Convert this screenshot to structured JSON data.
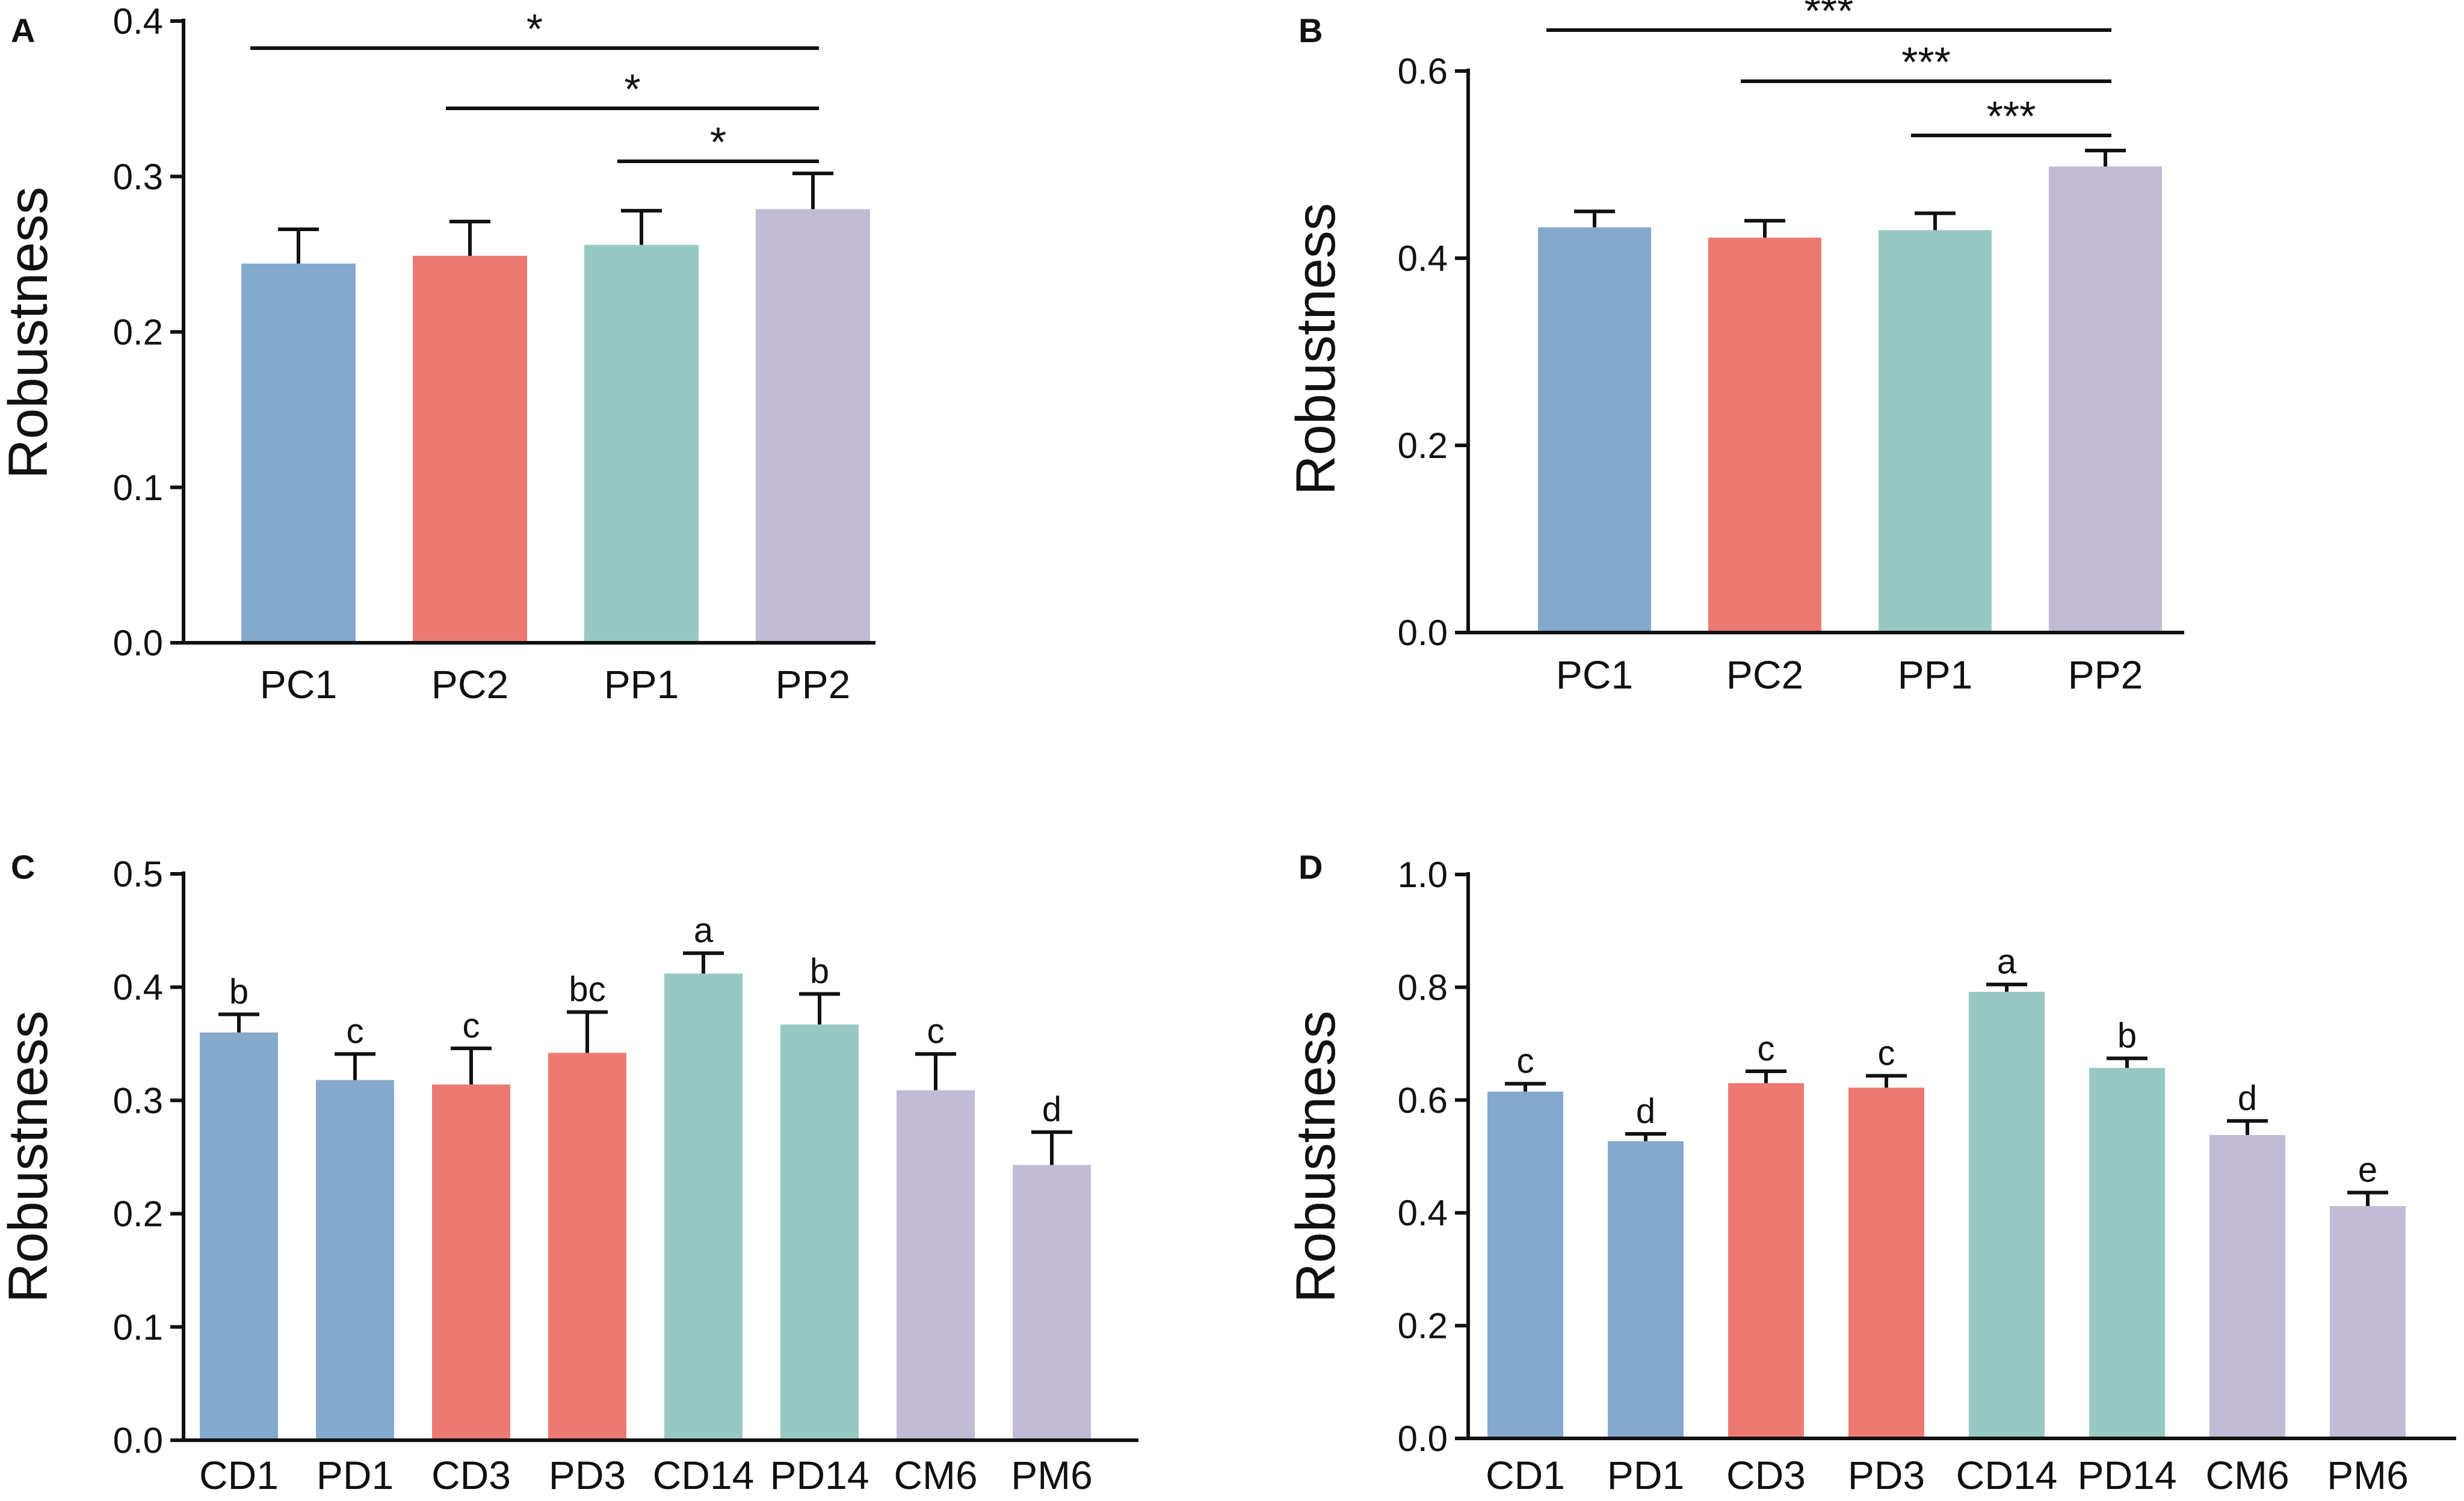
{
  "colors": {
    "blue": "#84a9cd",
    "red": "#ec7a72",
    "teal": "#97c9c2",
    "purple": "#c2bbd6",
    "axis": "#111111"
  },
  "chart_data": [
    {
      "panel": "A",
      "type": "bar",
      "ylabel": "Robustness",
      "ylim": [
        0,
        0.4
      ],
      "yticks": [
        "0.0",
        "0.1",
        "0.2",
        "0.3",
        "0.4"
      ],
      "categories": [
        "PC1",
        "PC2",
        "PP1",
        "PP2"
      ],
      "values": [
        0.244,
        0.249,
        0.256,
        0.279
      ],
      "errors": [
        0.022,
        0.022,
        0.022,
        0.023
      ],
      "colors": [
        "blue",
        "red",
        "teal",
        "purple"
      ],
      "significance": [
        {
          "from": 0,
          "to": 3,
          "label": "*"
        },
        {
          "from": 1,
          "to": 3,
          "label": "*"
        },
        {
          "from": 2,
          "to": 3,
          "label": "*"
        }
      ],
      "letters": []
    },
    {
      "panel": "B",
      "type": "bar",
      "ylabel": "Robustness",
      "ylim": [
        0,
        0.6
      ],
      "yticks": [
        "0.0",
        "0.2",
        "0.4",
        "0.6"
      ],
      "categories": [
        "PC1",
        "PC2",
        "PP1",
        "PP2"
      ],
      "values": [
        0.433,
        0.422,
        0.43,
        0.498
      ],
      "errors": [
        0.017,
        0.018,
        0.018,
        0.017
      ],
      "colors": [
        "blue",
        "red",
        "teal",
        "purple"
      ],
      "significance": [
        {
          "from": 0,
          "to": 3,
          "label": "***"
        },
        {
          "from": 1,
          "to": 3,
          "label": "***"
        },
        {
          "from": 2,
          "to": 3,
          "label": "***"
        }
      ],
      "letters": []
    },
    {
      "panel": "C",
      "type": "bar",
      "ylabel": "Robustness",
      "ylim": [
        0,
        0.5
      ],
      "yticks": [
        "0.0",
        "0.1",
        "0.2",
        "0.3",
        "0.4",
        "0.5"
      ],
      "categories": [
        "CD1",
        "PD1",
        "CD3",
        "PD3",
        "CD14",
        "PD14",
        "CM6",
        "PM6"
      ],
      "values": [
        0.36,
        0.318,
        0.314,
        0.342,
        0.412,
        0.367,
        0.309,
        0.243
      ],
      "errors": [
        0.016,
        0.023,
        0.032,
        0.036,
        0.018,
        0.027,
        0.032,
        0.029
      ],
      "colors": [
        "blue",
        "blue",
        "red",
        "red",
        "teal",
        "teal",
        "purple",
        "purple"
      ],
      "significance": [],
      "letters": [
        "b",
        "c",
        "c",
        "bc",
        "a",
        "b",
        "c",
        "d"
      ]
    },
    {
      "panel": "D",
      "type": "bar",
      "ylabel": "Robustness",
      "ylim": [
        0,
        1.0
      ],
      "yticks": [
        "0.0",
        "0.2",
        "0.4",
        "0.6",
        "0.8",
        "1.0"
      ],
      "categories": [
        "CD1",
        "PD1",
        "CD3",
        "PD3",
        "CD14",
        "PD14",
        "CM6",
        "PM6"
      ],
      "values": [
        0.615,
        0.527,
        0.63,
        0.622,
        0.792,
        0.657,
        0.538,
        0.412
      ],
      "errors": [
        0.014,
        0.013,
        0.021,
        0.021,
        0.013,
        0.017,
        0.025,
        0.024
      ],
      "colors": [
        "blue",
        "blue",
        "red",
        "red",
        "teal",
        "teal",
        "purple",
        "purple"
      ],
      "significance": [],
      "letters": [
        "c",
        "d",
        "c",
        "c",
        "a",
        "b",
        "d",
        "e"
      ]
    }
  ]
}
